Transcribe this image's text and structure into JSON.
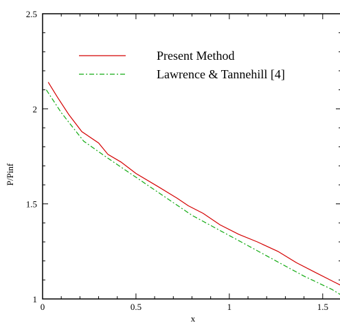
{
  "chart_data": {
    "type": "line",
    "title": "",
    "xlabel": "x",
    "ylabel": "P/Pinf",
    "xlim": [
      0,
      1.6
    ],
    "ylim": [
      1,
      2.5
    ],
    "x_ticks": [
      0,
      0.5,
      1,
      1.5
    ],
    "x_tick_labels": [
      "0",
      "0.5",
      "1",
      "1.5"
    ],
    "y_ticks": [
      1,
      1.5,
      2,
      2.5
    ],
    "y_tick_labels": [
      "1",
      "1.5",
      "2",
      "2.5"
    ],
    "grid": false,
    "legend_position": "top-center",
    "series": [
      {
        "name": "Present Method",
        "color": "#d40000",
        "line_style": "solid",
        "x": [
          0.03,
          0.08,
          0.14,
          0.21,
          0.3,
          0.35,
          0.42,
          0.5,
          0.62,
          0.72,
          0.78,
          0.86,
          0.95,
          1.05,
          1.15,
          1.26,
          1.36,
          1.46,
          1.56,
          1.6
        ],
        "y": [
          2.14,
          2.06,
          1.97,
          1.88,
          1.82,
          1.76,
          1.72,
          1.66,
          1.59,
          1.53,
          1.49,
          1.45,
          1.39,
          1.34,
          1.3,
          1.25,
          1.19,
          1.14,
          1.09,
          1.07
        ]
      },
      {
        "name": "Lawrence & Tannehill [4]",
        "color": "#11aa11",
        "line_style": "dashdot",
        "x": [
          0.02,
          0.1,
          0.22,
          0.35,
          0.5,
          0.65,
          0.8,
          0.95,
          1.1,
          1.25,
          1.4,
          1.55,
          1.6
        ],
        "y": [
          2.1,
          1.98,
          1.83,
          1.74,
          1.64,
          1.54,
          1.44,
          1.36,
          1.28,
          1.2,
          1.12,
          1.05,
          1.02
        ]
      }
    ]
  }
}
